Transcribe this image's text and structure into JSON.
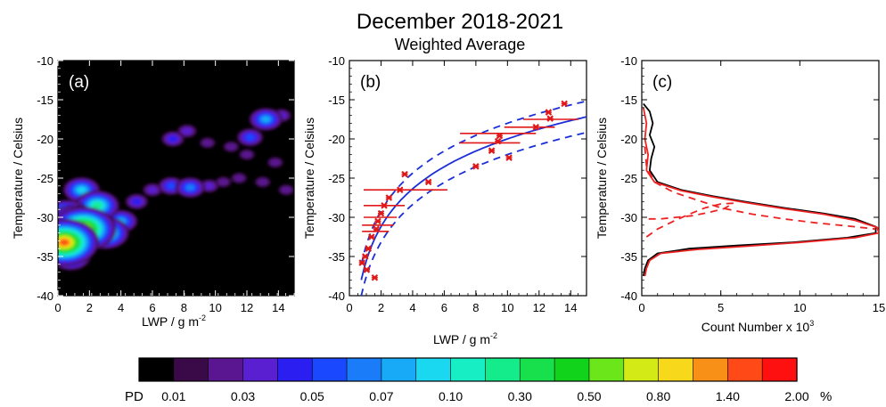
{
  "figure": {
    "title": "December 2018-2021",
    "subtitle": "Weighted Average"
  },
  "chart_data": [
    {
      "panel": "(a)",
      "type": "heatmap",
      "xlabel_main": "LWP / g m",
      "xlabel_sup": "-2",
      "ylabel": "Temperature / Celsius",
      "xlim": [
        0,
        15
      ],
      "ylim": [
        -40,
        -10
      ],
      "xticks": [
        "0",
        "2",
        "4",
        "6",
        "8",
        "10",
        "12",
        "14"
      ],
      "yticks": [
        "-10",
        "-15",
        "-20",
        "-25",
        "-30",
        "-35",
        "-40"
      ],
      "background": "#000000",
      "blobs": [
        {
          "x": 2.0,
          "y": -30.0,
          "level": 9
        },
        {
          "x": 1.0,
          "y": -31.0,
          "level": 14
        },
        {
          "x": 1.6,
          "y": -31.5,
          "level": 16
        },
        {
          "x": 0.4,
          "y": -33.2,
          "level": 17
        },
        {
          "x": 0.5,
          "y": -30.0,
          "level": 12
        },
        {
          "x": 3.0,
          "y": -32.0,
          "level": 11
        },
        {
          "x": 2.5,
          "y": -28.5,
          "level": 10
        },
        {
          "x": 4.0,
          "y": -30.5,
          "level": 7
        },
        {
          "x": 1.5,
          "y": -26.5,
          "level": 8
        },
        {
          "x": 0.8,
          "y": -35.0,
          "level": 9
        },
        {
          "x": 5.0,
          "y": -28.0,
          "level": 4
        },
        {
          "x": 6.0,
          "y": -26.5,
          "level": 3
        },
        {
          "x": 7.2,
          "y": -26.0,
          "level": 5
        },
        {
          "x": 8.4,
          "y": -26.2,
          "level": 6
        },
        {
          "x": 9.6,
          "y": -26.0,
          "level": 3
        },
        {
          "x": 10.5,
          "y": -25.5,
          "level": 2
        },
        {
          "x": 7.3,
          "y": -20.0,
          "level": 4
        },
        {
          "x": 8.2,
          "y": -19.0,
          "level": 3
        },
        {
          "x": 9.5,
          "y": -20.5,
          "level": 2
        },
        {
          "x": 11.0,
          "y": -21.0,
          "level": 2
        },
        {
          "x": 12.2,
          "y": -19.8,
          "level": 5
        },
        {
          "x": 13.2,
          "y": -17.5,
          "level": 7
        },
        {
          "x": 14.2,
          "y": -17.0,
          "level": 3
        },
        {
          "x": 12.0,
          "y": -22.0,
          "level": 2
        },
        {
          "x": 13.8,
          "y": -23.0,
          "level": 2
        },
        {
          "x": 14.5,
          "y": -26.5,
          "level": 2
        },
        {
          "x": 11.5,
          "y": -25.0,
          "level": 2
        },
        {
          "x": 13.0,
          "y": -25.5,
          "level": 2
        }
      ]
    },
    {
      "panel": "(b)",
      "type": "scatter",
      "xlabel_main": "LWP / g m",
      "xlabel_sup": "-2",
      "ylabel": "Temperature / Celsius",
      "xlim": [
        0,
        15
      ],
      "ylim": [
        -40,
        -10
      ],
      "xticks": [
        "0",
        "2",
        "4",
        "6",
        "8",
        "10",
        "12",
        "14"
      ],
      "yticks": [
        "-10",
        "-15",
        "-20",
        "-25",
        "-30",
        "-35",
        "-40"
      ],
      "points": [
        {
          "x": 0.8,
          "y": -35.8
        },
        {
          "x": 1.0,
          "y": -35.0
        },
        {
          "x": 1.2,
          "y": -34.0
        },
        {
          "x": 1.1,
          "y": -36.7
        },
        {
          "x": 1.6,
          "y": -37.7
        },
        {
          "x": 1.4,
          "y": -32.5
        },
        {
          "x": 1.7,
          "y": -31.5
        },
        {
          "x": 1.8,
          "y": -30.5
        },
        {
          "x": 2.0,
          "y": -29.5
        },
        {
          "x": 2.2,
          "y": -28.5
        },
        {
          "x": 2.5,
          "y": -27.5
        },
        {
          "x": 3.2,
          "y": -26.5
        },
        {
          "x": 3.5,
          "y": -24.5
        },
        {
          "x": 5.0,
          "y": -25.5
        },
        {
          "x": 8.0,
          "y": -23.5
        },
        {
          "x": 9.0,
          "y": -21.5
        },
        {
          "x": 9.4,
          "y": -20.3
        },
        {
          "x": 9.5,
          "y": -19.6
        },
        {
          "x": 10.1,
          "y": -22.4
        },
        {
          "x": 11.8,
          "y": -18.5
        },
        {
          "x": 12.6,
          "y": -16.6
        },
        {
          "x": 12.7,
          "y": -17.4
        },
        {
          "x": 13.6,
          "y": -15.5
        }
      ],
      "error_bars": [
        {
          "y": -26.5,
          "x0": 0.9,
          "x1": 6.2
        },
        {
          "y": -28.5,
          "x0": 0.9,
          "x1": 3.5
        },
        {
          "y": -30.0,
          "x0": 0.9,
          "x1": 3.0
        },
        {
          "y": -31.0,
          "x0": 0.8,
          "x1": 2.8
        },
        {
          "y": -31.8,
          "x0": 0.8,
          "x1": 2.5
        },
        {
          "y": -19.3,
          "x0": 7.0,
          "x1": 11.8
        },
        {
          "y": -20.5,
          "x0": 7.0,
          "x1": 10.8
        },
        {
          "y": -17.5,
          "x0": 11.0,
          "x1": 14.5
        },
        {
          "y": -18.5,
          "x0": 9.8,
          "x1": 13.0
        }
      ],
      "fit": {
        "a": -36.0,
        "b": 16.0,
        "x_from": 0.75,
        "x_to": 15.0,
        "offset": 2.0
      }
    },
    {
      "panel": "(c)",
      "type": "line",
      "xlabel_main": "Count Number x 10",
      "xlabel_sup": "3",
      "ylabel": "Temperature / Celsius",
      "xlim": [
        0,
        15
      ],
      "ylim": [
        -40,
        -10
      ],
      "xticks": [
        "0",
        "5",
        "10",
        "15"
      ],
      "yticks": [
        "-10",
        "-15",
        "-20",
        "-25",
        "-30",
        "-35",
        "-40"
      ],
      "series": [
        {
          "style": "black-solid",
          "color": "#000000",
          "points": [
            [
              0.1,
              -15.5
            ],
            [
              0.5,
              -16.5
            ],
            [
              0.7,
              -18
            ],
            [
              0.5,
              -19.5
            ],
            [
              0.8,
              -21
            ],
            [
              0.6,
              -22.5
            ],
            [
              0.5,
              -24
            ],
            [
              1.0,
              -25.5
            ],
            [
              2.5,
              -26.5
            ],
            [
              4.5,
              -27.3
            ],
            [
              6.5,
              -28.0
            ],
            [
              9.0,
              -28.8
            ],
            [
              11.5,
              -29.5
            ],
            [
              13.5,
              -30.2
            ],
            [
              14.8,
              -31.2
            ],
            [
              14.8,
              -32.0
            ],
            [
              13.0,
              -32.6
            ],
            [
              9.5,
              -33.2
            ],
            [
              6.0,
              -33.6
            ],
            [
              3.0,
              -34.0
            ],
            [
              1.0,
              -34.6
            ],
            [
              0.4,
              -35.5
            ],
            [
              0.2,
              -36.5
            ],
            [
              0.1,
              -37.5
            ]
          ]
        },
        {
          "style": "red-solid",
          "color": "#ee2222",
          "points": [
            [
              0.1,
              -16
            ],
            [
              0.3,
              -18
            ],
            [
              0.2,
              -20
            ],
            [
              0.4,
              -22
            ],
            [
              0.3,
              -24
            ],
            [
              0.8,
              -25.5
            ],
            [
              2.5,
              -26.6
            ],
            [
              4.5,
              -27.4
            ],
            [
              6.5,
              -28.1
            ],
            [
              9.0,
              -28.9
            ],
            [
              11.5,
              -29.6
            ],
            [
              13.5,
              -30.4
            ],
            [
              14.9,
              -31.3
            ],
            [
              15.0,
              -32.0
            ],
            [
              13.5,
              -32.6
            ],
            [
              10.0,
              -33.2
            ],
            [
              6.5,
              -33.7
            ],
            [
              3.5,
              -34.1
            ],
            [
              1.2,
              -34.6
            ],
            [
              0.5,
              -35.5
            ],
            [
              0.3,
              -36.5
            ],
            [
              0.2,
              -37.5
            ]
          ]
        },
        {
          "style": "red-dashed",
          "color": "#ee2222",
          "points": [
            [
              0.2,
              -21
            ],
            [
              0.3,
              -23.5
            ],
            [
              0.8,
              -25.5
            ],
            [
              2.0,
              -26.8
            ],
            [
              3.5,
              -27.8
            ],
            [
              5.0,
              -28.8
            ],
            [
              7.0,
              -29.6
            ],
            [
              9.0,
              -30.2
            ],
            [
              11.0,
              -30.7
            ],
            [
              13.0,
              -31.1
            ],
            [
              14.8,
              -31.5
            ]
          ]
        },
        {
          "style": "red-dashed",
          "color": "#ee2222",
          "points": [
            [
              0.3,
              -32.5
            ],
            [
              1.0,
              -31.5
            ],
            [
              2.0,
              -30.5
            ],
            [
              3.0,
              -29.6
            ],
            [
              4.0,
              -28.8
            ],
            [
              5.0,
              -28.3
            ],
            [
              5.8,
              -28.2
            ],
            [
              5.2,
              -28.9
            ],
            [
              4.2,
              -29.4
            ],
            [
              3.2,
              -29.8
            ],
            [
              2.2,
              -30.0
            ],
            [
              1.2,
              -30.2
            ],
            [
              0.2,
              -30.2
            ]
          ]
        }
      ]
    }
  ],
  "colorbar": {
    "label": "PD",
    "unit": "%",
    "ticks": [
      "0.01",
      "0.03",
      "0.05",
      "0.07",
      "0.10",
      "0.30",
      "0.50",
      "0.80",
      "1.40",
      "2.00"
    ],
    "colors": [
      "#000000",
      "#3a0a48",
      "#5a1690",
      "#5a1fd0",
      "#2a1ff0",
      "#1a48ff",
      "#1a7cf8",
      "#18aaf6",
      "#19d8f0",
      "#18eec4",
      "#14ec8c",
      "#17e04c",
      "#12d31c",
      "#6ae61a",
      "#d4ea16",
      "#f8d81a",
      "#f89018",
      "#ff4a18",
      "#ff1010"
    ]
  }
}
